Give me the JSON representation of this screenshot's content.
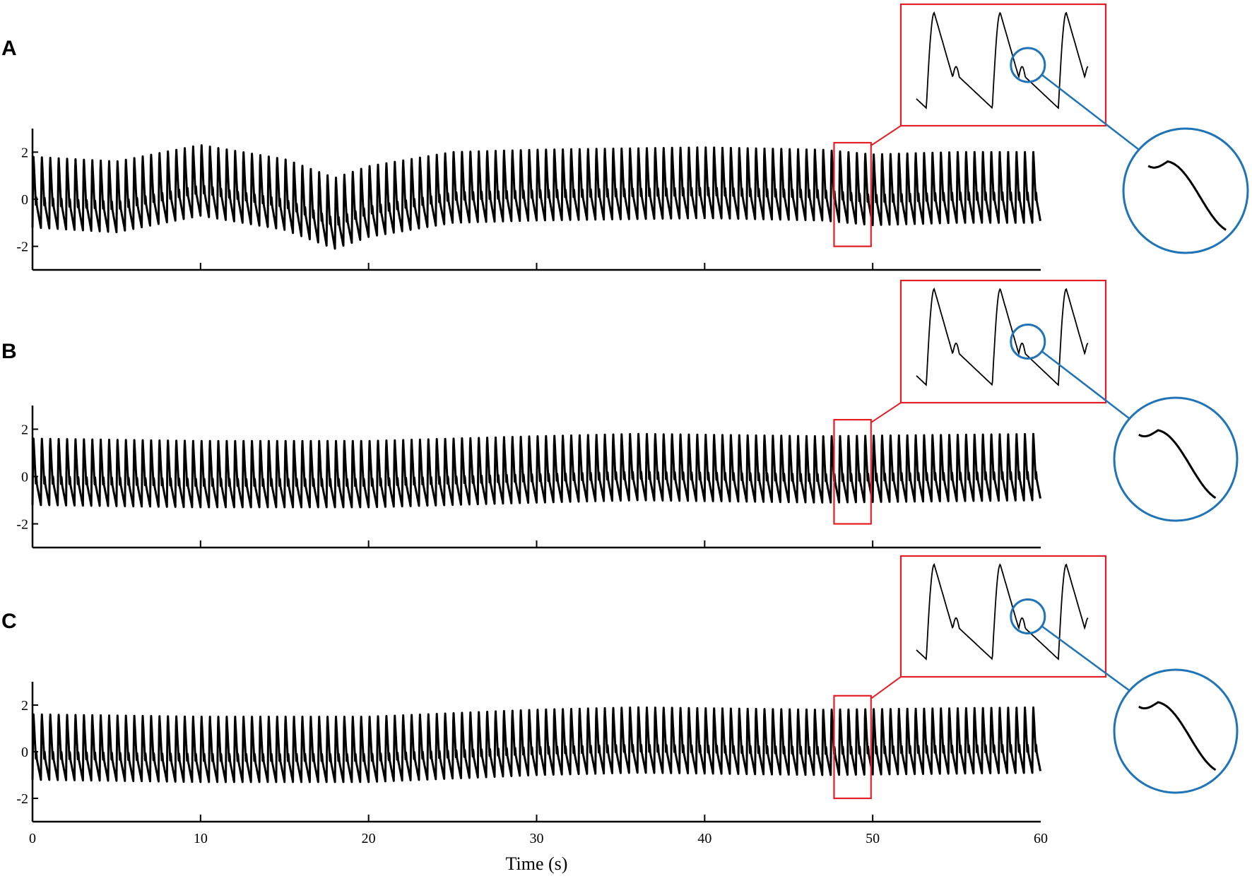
{
  "chart_data": [
    {
      "type": "line",
      "panel_label": "A",
      "x_range": [
        0,
        60
      ],
      "ylim": [
        -3,
        3
      ],
      "ytick_labels": [
        "2",
        "0",
        "-2"
      ],
      "ytick_values": [
        2,
        0,
        -2
      ],
      "xtick_values": [
        10,
        20,
        30,
        40,
        50
      ],
      "xtick_labels": [],
      "signal": {
        "beat_period_s": 0.5,
        "peak_value": 1.8,
        "trough_value": -1.2,
        "baseline_drift": [
          [
            0,
            0
          ],
          [
            5,
            -0.2
          ],
          [
            10,
            0.5
          ],
          [
            15,
            -0.1
          ],
          [
            18,
            -0.9
          ],
          [
            20,
            -0.4
          ],
          [
            25,
            0.2
          ],
          [
            30,
            0.3
          ],
          [
            40,
            0.4
          ],
          [
            47,
            0.3
          ],
          [
            50,
            0.1
          ],
          [
            55,
            0.2
          ],
          [
            60,
            0.2
          ]
        ]
      },
      "zoom_window_s": [
        47.7,
        49.9
      ],
      "insets": [
        "rectangular zoom with 3 beats",
        "circular zoom of dicrotic notch"
      ],
      "grid": false,
      "legend": "none"
    },
    {
      "type": "line",
      "panel_label": "B",
      "x_range": [
        0,
        60
      ],
      "ylim": [
        -3,
        3
      ],
      "ytick_labels": [
        "2",
        "0",
        "-2"
      ],
      "ytick_values": [
        2,
        0,
        -2
      ],
      "xtick_values": [
        10,
        20,
        30,
        40,
        50
      ],
      "xtick_labels": [],
      "signal": {
        "beat_period_s": 0.5,
        "peak_value": 1.5,
        "trough_value": -1.3,
        "baseline_drift": [
          [
            0,
            0.1
          ],
          [
            10,
            0.0
          ],
          [
            20,
            0.0
          ],
          [
            30,
            0.2
          ],
          [
            36,
            0.3
          ],
          [
            47,
            0.2
          ],
          [
            60,
            0.3
          ]
        ]
      },
      "zoom_window_s": [
        47.7,
        49.9
      ],
      "insets": [
        "rectangular zoom with 3 beats",
        "circular zoom of dicrotic notch"
      ],
      "grid": false,
      "legend": "none"
    },
    {
      "type": "line",
      "panel_label": "C",
      "x_range": [
        0,
        60
      ],
      "ylim": [
        -3,
        3
      ],
      "ytick_labels": [
        "2",
        "0",
        "-2"
      ],
      "ytick_values": [
        2,
        0,
        -2
      ],
      "xtick_values": [
        0,
        10,
        20,
        30,
        40,
        50,
        60
      ],
      "xtick_labels": [
        "0",
        "10",
        "20",
        "30",
        "40",
        "50",
        "60"
      ],
      "xlabel": "Time (s)",
      "signal": {
        "beat_period_s": 0.5,
        "peak_value": 1.5,
        "trough_value": -1.3,
        "baseline_drift": [
          [
            0,
            0.1
          ],
          [
            10,
            0.0
          ],
          [
            20,
            0.0
          ],
          [
            30,
            0.3
          ],
          [
            36,
            0.4
          ],
          [
            47,
            0.3
          ],
          [
            60,
            0.4
          ]
        ]
      },
      "zoom_window_s": [
        47.7,
        49.9
      ],
      "insets": [
        "rectangular zoom with 3 beats",
        "circular zoom of dicrotic notch"
      ],
      "grid": false,
      "legend": "none"
    }
  ],
  "colors": {
    "signal": "#000000",
    "zoom_box": "#e31e24",
    "magnifier": "#1f73b7",
    "axis": "#000000"
  }
}
